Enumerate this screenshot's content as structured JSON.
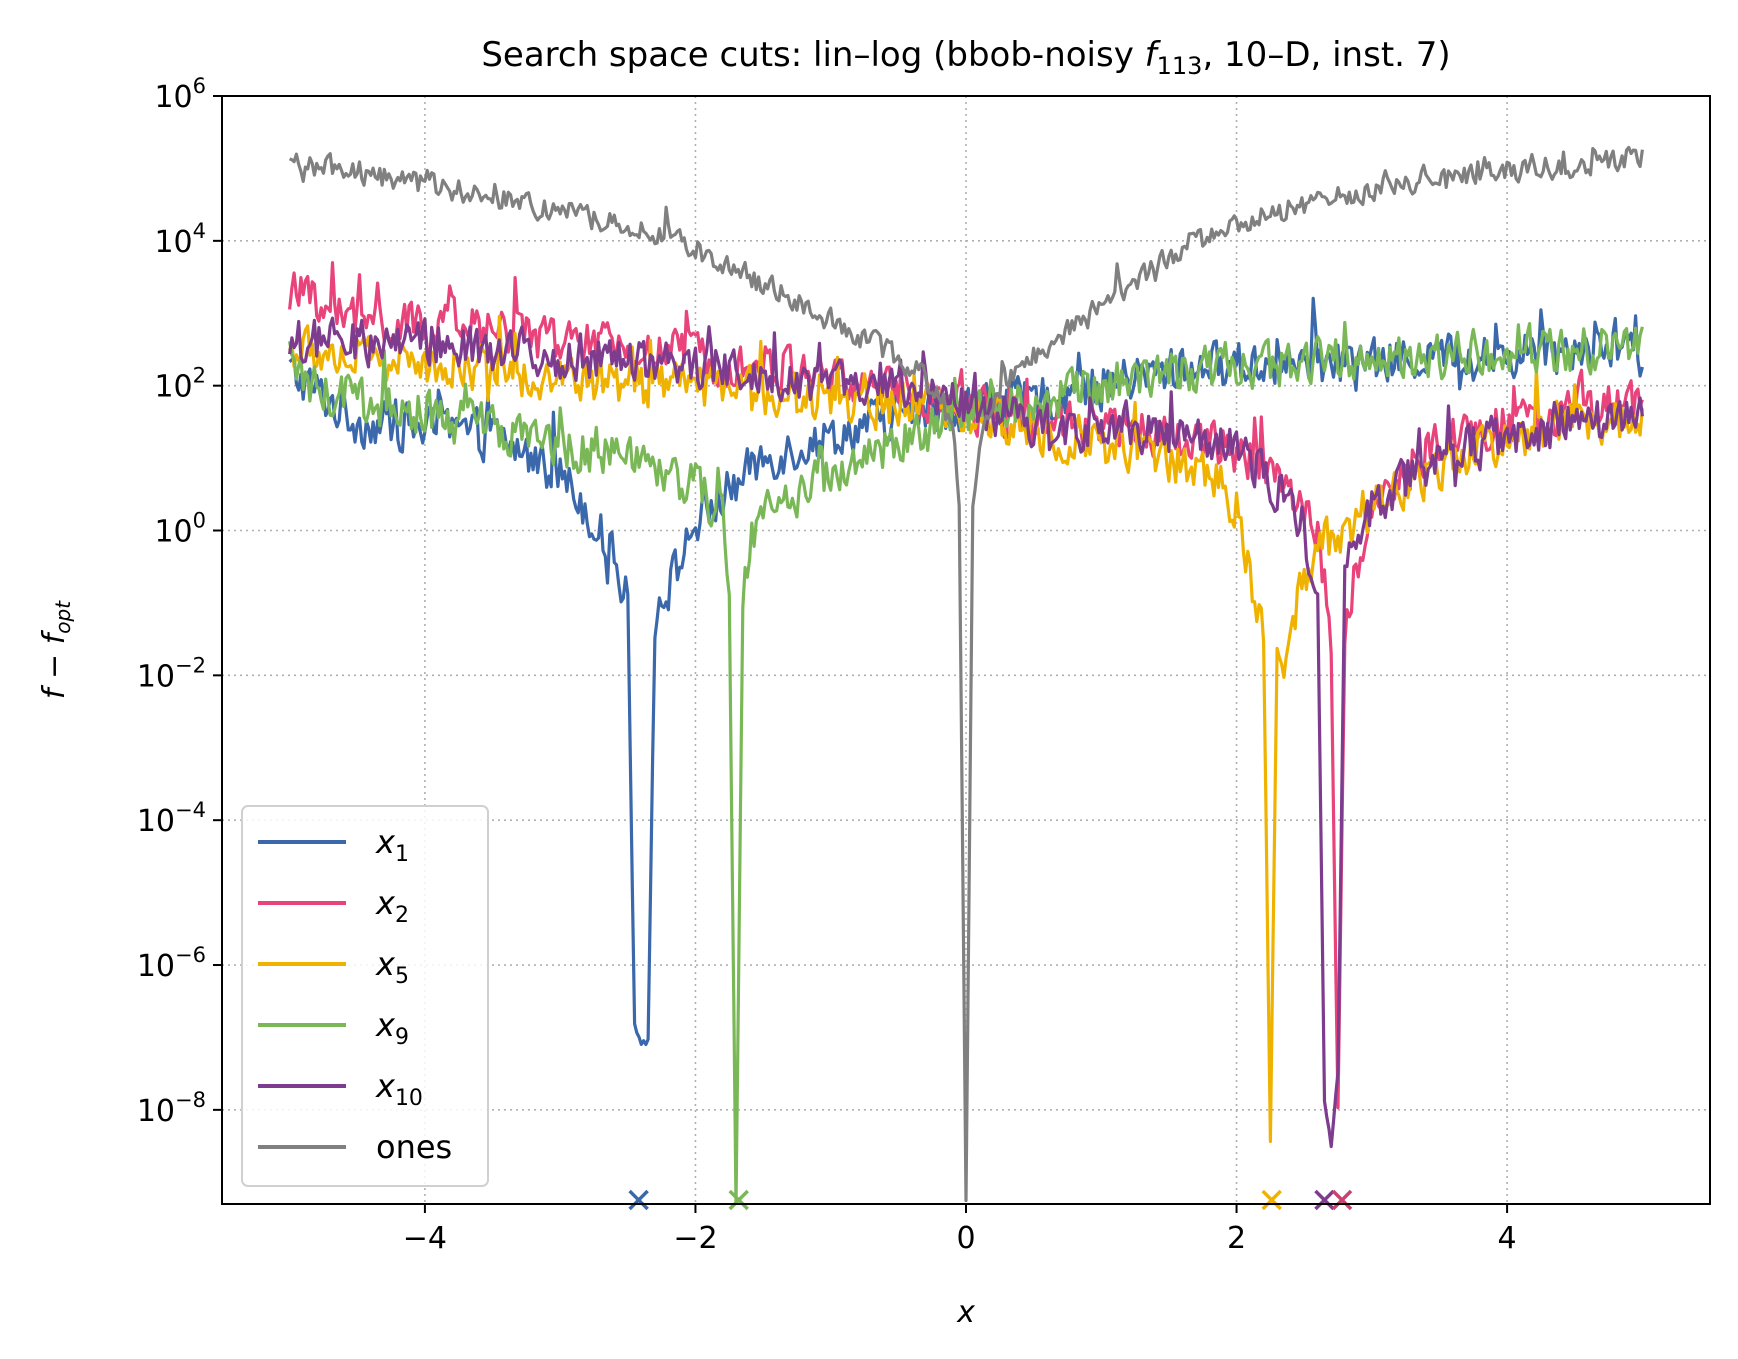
{
  "chart_data": {
    "type": "line",
    "title": "Search space cuts: lin–log (bbob-noisy f113, 10–D, inst. 7)",
    "title_parts": {
      "prefix": "Search space cuts: lin–log (bbob-noisy ",
      "fn": "f",
      "fn_sub": "113",
      "suffix": ", 10–D, inst. 7)"
    },
    "xlabel": "x",
    "ylabel": "f − f_opt",
    "ylabel_parts": {
      "a": "f",
      "minus": " − ",
      "b": "f",
      "b_sub": "opt"
    },
    "xscale": "linear",
    "yscale": "log",
    "xlim": [
      -5.5,
      5.5
    ],
    "ylim_log10": [
      -9.3,
      6.0
    ],
    "grid": true,
    "legend_position": "lower left",
    "xticks": [
      -4,
      -2,
      0,
      2,
      4
    ],
    "xtick_labels": [
      "−4",
      "−2",
      "0",
      "2",
      "4"
    ],
    "yticks_log10": [
      -8,
      -6,
      -4,
      -2,
      0,
      2,
      4,
      6
    ],
    "ytick_base": "10",
    "ytick_exponents": [
      "−8",
      "−6",
      "−4",
      "−2",
      "0",
      "2",
      "4",
      "6"
    ],
    "series": [
      {
        "name": "x1",
        "label_base": "x",
        "label_sub": "1",
        "color": "#3a68ab",
        "x": [
          -5.0,
          -4.5,
          -4.0,
          -3.5,
          -3.0,
          -2.8,
          -2.6,
          -2.5,
          -2.45,
          -2.4,
          -2.35,
          -2.3,
          -2.2,
          -2.0,
          -1.5,
          -1.0,
          -0.5,
          0.0,
          0.5,
          1.0,
          1.5,
          2.0,
          2.5,
          3.0,
          3.5,
          4.0,
          4.5,
          5.0
        ],
        "log10_y": [
          2.2,
          1.5,
          1.4,
          1.3,
          0.8,
          0.3,
          -0.4,
          -1.0,
          -6.8,
          -7.1,
          -7.0,
          -1.2,
          -0.8,
          0.1,
          1.0,
          1.3,
          1.6,
          1.7,
          1.8,
          2.0,
          2.2,
          2.3,
          2.3,
          2.3,
          2.4,
          2.4,
          2.6,
          2.4
        ]
      },
      {
        "name": "x2",
        "label_base": "x",
        "label_sub": "2",
        "color": "#e8437a",
        "x": [
          -5.0,
          -4.5,
          -4.0,
          -3.5,
          -3.0,
          -2.5,
          -2.0,
          -1.5,
          -1.0,
          -0.5,
          0.0,
          0.5,
          1.0,
          1.5,
          2.0,
          2.3,
          2.5,
          2.6,
          2.65,
          2.7,
          2.75,
          2.8,
          2.9,
          3.0,
          3.2,
          3.5,
          4.0,
          4.5,
          5.0
        ],
        "log10_y": [
          3.3,
          2.9,
          2.8,
          2.8,
          2.6,
          2.5,
          2.4,
          2.3,
          2.1,
          1.9,
          1.7,
          1.5,
          1.4,
          1.3,
          1.1,
          0.8,
          0.3,
          -0.1,
          -0.8,
          -1.8,
          -8.0,
          -1.4,
          -0.4,
          0.3,
          0.8,
          1.2,
          1.5,
          1.6,
          1.8
        ]
      },
      {
        "name": "x5",
        "label_base": "x",
        "label_sub": "5",
        "color": "#f0b200",
        "x": [
          -5.0,
          -4.5,
          -4.0,
          -3.5,
          -3.0,
          -2.5,
          -2.0,
          -1.5,
          -1.0,
          -0.5,
          0.0,
          0.5,
          1.0,
          1.5,
          1.8,
          2.0,
          2.1,
          2.2,
          2.25,
          2.3,
          2.35,
          2.4,
          2.5,
          2.6,
          2.8,
          3.0,
          3.5,
          4.0,
          4.5,
          5.0
        ],
        "log10_y": [
          2.5,
          2.4,
          2.3,
          2.2,
          2.1,
          2.0,
          2.0,
          1.9,
          1.8,
          1.7,
          1.6,
          1.4,
          1.2,
          1.0,
          0.8,
          0.3,
          -0.6,
          -1.4,
          -8.4,
          -1.6,
          -2.0,
          -1.3,
          -0.6,
          -0.2,
          0.0,
          0.3,
          0.9,
          1.3,
          1.5,
          1.6
        ]
      },
      {
        "name": "x9",
        "label_base": "x",
        "label_sub": "9",
        "color": "#7ab857",
        "x": [
          -5.0,
          -4.5,
          -4.0,
          -3.5,
          -3.0,
          -2.5,
          -2.0,
          -1.8,
          -1.75,
          -1.7,
          -1.65,
          -1.6,
          -1.5,
          -1.0,
          -0.5,
          0.0,
          0.5,
          1.0,
          1.5,
          2.0,
          2.5,
          3.0,
          3.5,
          4.0,
          4.5,
          5.0
        ],
        "log10_y": [
          2.1,
          1.8,
          1.6,
          1.4,
          1.2,
          1.0,
          0.6,
          0.2,
          -1.0,
          -9.3,
          -1.1,
          -0.2,
          0.2,
          0.8,
          1.2,
          1.6,
          1.8,
          2.0,
          2.2,
          2.3,
          2.3,
          2.4,
          2.4,
          2.5,
          2.5,
          2.6
        ]
      },
      {
        "name": "x10",
        "label_base": "x",
        "label_sub": "10",
        "color": "#7d3c8e",
        "x": [
          -5.0,
          -4.5,
          -4.0,
          -3.5,
          -3.0,
          -2.5,
          -2.0,
          -1.5,
          -1.0,
          -0.5,
          0.0,
          0.5,
          1.0,
          1.5,
          2.0,
          2.3,
          2.5,
          2.6,
          2.65,
          2.7,
          2.75,
          2.8,
          2.9,
          3.0,
          3.5,
          4.0,
          4.5,
          5.0
        ],
        "log10_y": [
          2.6,
          2.6,
          2.6,
          2.5,
          2.4,
          2.4,
          2.3,
          2.2,
          2.0,
          1.9,
          1.7,
          1.5,
          1.4,
          1.3,
          1.1,
          0.6,
          0.0,
          -0.8,
          -7.9,
          -8.5,
          -7.5,
          -0.6,
          -0.1,
          0.4,
          1.0,
          1.3,
          1.5,
          1.6
        ]
      },
      {
        "name": "ones",
        "label_text": "ones",
        "color": "#808080",
        "x": [
          -5.0,
          -4.5,
          -4.0,
          -3.5,
          -3.0,
          -2.5,
          -2.0,
          -1.7,
          -1.5,
          -1.2,
          -1.0,
          -0.8,
          -0.5,
          -0.3,
          -0.2,
          -0.1,
          -0.05,
          0.0,
          0.05,
          0.1,
          0.2,
          0.3,
          0.5,
          0.8,
          1.0,
          1.2,
          1.5,
          2.0,
          2.5,
          3.0,
          3.5,
          4.0,
          4.5,
          5.0
        ],
        "log10_y": [
          5.1,
          4.95,
          4.8,
          4.6,
          4.4,
          4.2,
          3.9,
          3.6,
          3.4,
          3.1,
          2.9,
          2.7,
          2.4,
          2.1,
          1.8,
          1.3,
          0.5,
          -9.3,
          0.4,
          1.2,
          1.7,
          2.1,
          2.4,
          2.8,
          3.1,
          3.4,
          3.8,
          4.2,
          4.5,
          4.7,
          4.85,
          4.95,
          5.05,
          5.2
        ]
      }
    ],
    "optimum_markers": [
      {
        "series": "x1",
        "x": -2.42,
        "color": "#3a68ab"
      },
      {
        "series": "x9",
        "x": -1.68,
        "color": "#7ab857"
      },
      {
        "series": "x5",
        "x": 2.26,
        "color": "#f0b200"
      },
      {
        "series": "x10",
        "x": 2.65,
        "color": "#7d3c8e"
      },
      {
        "series": "x2",
        "x": 2.78,
        "color": "#c9426e"
      }
    ]
  }
}
